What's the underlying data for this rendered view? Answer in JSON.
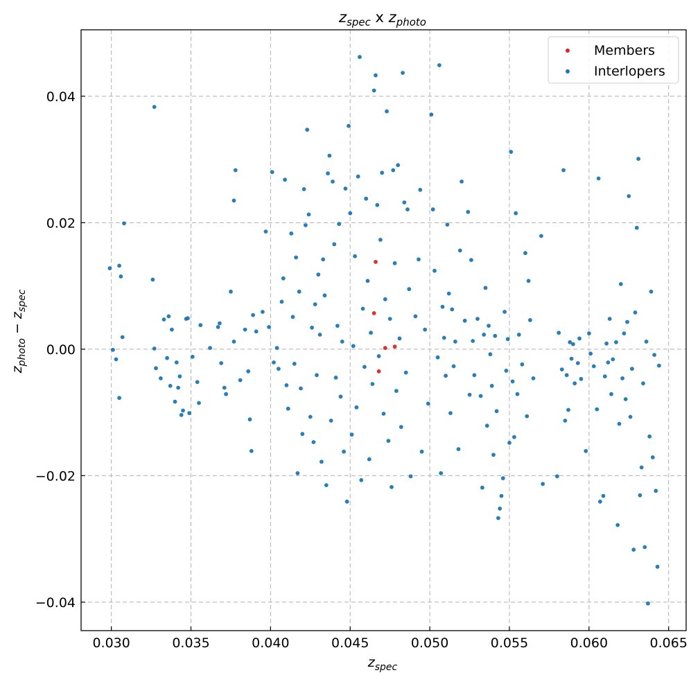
{
  "chart_data": {
    "type": "scatter",
    "title": {
      "left_main": "z",
      "left_sub": "spec",
      "joiner": " x ",
      "right_main": "z",
      "right_sub": "photo"
    },
    "xlabel": {
      "main": "z",
      "sub": "spec"
    },
    "ylabel": {
      "main1": "z",
      "sub1": "photo",
      "minus": " − ",
      "main2": "z",
      "sub2": "spec"
    },
    "xlim": [
      0.0281,
      0.0661
    ],
    "ylim": [
      -0.0445,
      0.0505
    ],
    "x_ticks": [
      0.03,
      0.035,
      0.04,
      0.045,
      0.05,
      0.055,
      0.06,
      0.065
    ],
    "x_tick_labels": [
      "0.030",
      "0.035",
      "0.040",
      "0.045",
      "0.050",
      "0.055",
      "0.060",
      "0.065"
    ],
    "y_ticks": [
      -0.04,
      -0.02,
      0.0,
      0.02,
      0.04
    ],
    "y_tick_labels": [
      "−0.04",
      "−0.02",
      "0.00",
      "0.02",
      "0.04"
    ],
    "grid": true,
    "legend_position": "top-right",
    "series": [
      {
        "name": "Members",
        "color": "#d62728",
        "points": [
          [
            0.0466,
            0.0138
          ],
          [
            0.0465,
            0.0057
          ],
          [
            0.0478,
            0.0004
          ],
          [
            0.0468,
            -0.0035
          ],
          [
            0.0472,
            0.0002
          ]
        ]
      },
      {
        "name": "Interlopers",
        "color": "#1f77b4",
        "points": [
          [
            0.0299,
            0.0128
          ],
          [
            0.0305,
            0.0132
          ],
          [
            0.0306,
            0.0115
          ],
          [
            0.0308,
            0.0199
          ],
          [
            0.0301,
            -0.0001
          ],
          [
            0.0303,
            -0.0016
          ],
          [
            0.0305,
            -0.0077
          ],
          [
            0.0307,
            0.0019
          ],
          [
            0.0327,
            0.0383
          ],
          [
            0.0326,
            0.011
          ],
          [
            0.0327,
            0.0001
          ],
          [
            0.0328,
            -0.003
          ],
          [
            0.0331,
            -0.0046
          ],
          [
            0.0333,
            0.0047
          ],
          [
            0.0335,
            -0.0014
          ],
          [
            0.0336,
            0.0052
          ],
          [
            0.0337,
            -0.0058
          ],
          [
            0.0338,
            0.0031
          ],
          [
            0.034,
            -0.0083
          ],
          [
            0.0341,
            -0.0021
          ],
          [
            0.0342,
            -0.0061
          ],
          [
            0.0343,
            -0.0043
          ],
          [
            0.0344,
            -0.0104
          ],
          [
            0.0345,
            -0.0097
          ],
          [
            0.0347,
            0.0048
          ],
          [
            0.0348,
            0.0049
          ],
          [
            0.0349,
            -0.0101
          ],
          [
            0.0351,
            -0.0012
          ],
          [
            0.0354,
            -0.0052
          ],
          [
            0.0355,
            -0.0085
          ],
          [
            0.0356,
            0.0038
          ],
          [
            0.0362,
            0.0002
          ],
          [
            0.0367,
            0.0035
          ],
          [
            0.0368,
            0.0041
          ],
          [
            0.0369,
            -0.0022
          ],
          [
            0.0371,
            -0.0061
          ],
          [
            0.0372,
            -0.0071
          ],
          [
            0.0375,
            0.0091
          ],
          [
            0.0378,
            0.0283
          ],
          [
            0.0377,
            0.0235
          ],
          [
            0.0377,
            0.0012
          ],
          [
            0.0381,
            -0.0049
          ],
          [
            0.0384,
            0.0031
          ],
          [
            0.0386,
            -0.0035
          ],
          [
            0.0387,
            -0.0111
          ],
          [
            0.0388,
            -0.0161
          ],
          [
            0.0389,
            0.0054
          ],
          [
            0.0391,
            0.0028
          ],
          [
            0.0395,
            0.0059
          ],
          [
            0.0397,
            0.0186
          ],
          [
            0.0399,
            0.0035
          ],
          [
            0.0401,
            0.028
          ],
          [
            0.0402,
            -0.0021
          ],
          [
            0.0404,
            0.0002
          ],
          [
            0.0405,
            -0.0031
          ],
          [
            0.0407,
            0.0075
          ],
          [
            0.0408,
            0.0112
          ],
          [
            0.0409,
            0.0268
          ],
          [
            0.041,
            -0.0057
          ],
          [
            0.0411,
            -0.0094
          ],
          [
            0.0413,
            0.0183
          ],
          [
            0.0414,
            0.0051
          ],
          [
            0.0415,
            -0.0023
          ],
          [
            0.0416,
            0.0145
          ],
          [
            0.0417,
            -0.0196
          ],
          [
            0.0418,
            0.0091
          ],
          [
            0.0419,
            -0.0062
          ],
          [
            0.042,
            -0.0134
          ],
          [
            0.0421,
            0.0253
          ],
          [
            0.0422,
            0.0196
          ],
          [
            0.0423,
            0.0347
          ],
          [
            0.0424,
            0.0213
          ],
          [
            0.0425,
            -0.0107
          ],
          [
            0.0426,
            0.0034
          ],
          [
            0.0427,
            -0.0147
          ],
          [
            0.0428,
            0.0071
          ],
          [
            0.0429,
            -0.0041
          ],
          [
            0.043,
            0.0118
          ],
          [
            0.0431,
            0.0023
          ],
          [
            0.0432,
            -0.0178
          ],
          [
            0.0433,
            0.0142
          ],
          [
            0.0434,
            0.0085
          ],
          [
            0.0435,
            -0.0215
          ],
          [
            0.0436,
            0.0278
          ],
          [
            0.0437,
            0.0306
          ],
          [
            0.0438,
            -0.0113
          ],
          [
            0.0439,
            0.0265
          ],
          [
            0.044,
            0.0166
          ],
          [
            0.0441,
            -0.0045
          ],
          [
            0.0442,
            0.0037
          ],
          [
            0.0443,
            0.0198
          ],
          [
            0.0444,
            -0.0075
          ],
          [
            0.0445,
            0.0012
          ],
          [
            0.0446,
            -0.0162
          ],
          [
            0.0447,
            0.0254
          ],
          [
            0.0448,
            -0.0241
          ],
          [
            0.0449,
            0.0353
          ],
          [
            0.045,
            0.0215
          ],
          [
            0.0451,
            -0.0135
          ],
          [
            0.0452,
            0.0005
          ],
          [
            0.0453,
            0.0147
          ],
          [
            0.0454,
            -0.0092
          ],
          [
            0.0455,
            0.0273
          ],
          [
            0.0456,
            0.0462
          ],
          [
            0.0457,
            -0.0207
          ],
          [
            0.0458,
            0.0064
          ],
          [
            0.0459,
            -0.0028
          ],
          [
            0.046,
            0.0238
          ],
          [
            0.0461,
            0.0108
          ],
          [
            0.0462,
            -0.0174
          ],
          [
            0.0463,
            0.0026
          ],
          [
            0.0464,
            -0.0055
          ],
          [
            0.0465,
            0.0409
          ],
          [
            0.0466,
            0.0433
          ],
          [
            0.0467,
            0.0228
          ],
          [
            0.0468,
            -0.0011
          ],
          [
            0.0469,
            0.0173
          ],
          [
            0.047,
            0.0279
          ],
          [
            0.0471,
            -0.0102
          ],
          [
            0.0472,
            0.0079
          ],
          [
            0.0473,
            0.0376
          ],
          [
            0.0474,
            -0.0145
          ],
          [
            0.0475,
            0.0048
          ],
          [
            0.0476,
            -0.0218
          ],
          [
            0.0477,
            0.0283
          ],
          [
            0.0478,
            0.0136
          ],
          [
            0.0479,
            -0.0066
          ],
          [
            0.048,
            0.0291
          ],
          [
            0.0481,
            0.0017
          ],
          [
            0.0482,
            -0.0123
          ],
          [
            0.0483,
            0.0437
          ],
          [
            0.0484,
            0.0232
          ],
          [
            0.0485,
            -0.0037
          ],
          [
            0.0486,
            0.0221
          ],
          [
            0.0487,
            0.0095
          ],
          [
            0.0488,
            -0.0201
          ],
          [
            0.0491,
            0.0052
          ],
          [
            0.0493,
            0.0142
          ],
          [
            0.0494,
            0.0252
          ],
          [
            0.0495,
            -0.0162
          ],
          [
            0.0497,
            0.0031
          ],
          [
            0.0499,
            -0.0086
          ],
          [
            0.0501,
            0.0371
          ],
          [
            0.0502,
            0.0221
          ],
          [
            0.0503,
            0.0124
          ],
          [
            0.0505,
            -0.0013
          ],
          [
            0.0506,
            0.0449
          ],
          [
            0.0507,
            -0.0196
          ],
          [
            0.0508,
            0.0067
          ],
          [
            0.0509,
            0.0018
          ],
          [
            0.051,
            -0.0042
          ],
          [
            0.0511,
            0.0197
          ],
          [
            0.0512,
            0.0088
          ],
          [
            0.0513,
            -0.0101
          ],
          [
            0.0514,
            0.0063
          ],
          [
            0.0515,
            -0.0027
          ],
          [
            0.0516,
            0.0012
          ],
          [
            0.0518,
            -0.0158
          ],
          [
            0.0519,
            0.0156
          ],
          [
            0.052,
            0.0265
          ],
          [
            0.0522,
            0.0045
          ],
          [
            0.0524,
            0.0217
          ],
          [
            0.0525,
            -0.0072
          ],
          [
            0.0526,
            0.0141
          ],
          [
            0.0527,
            0.0013
          ],
          [
            0.0528,
            -0.0041
          ],
          [
            0.053,
            0.0048
          ],
          [
            0.0532,
            -0.0074
          ],
          [
            0.0533,
            -0.0219
          ],
          [
            0.0534,
            0.0023
          ],
          [
            0.0535,
            0.0097
          ],
          [
            0.0536,
            -0.0121
          ],
          [
            0.0537,
            0.0037
          ],
          [
            0.0538,
            -0.0008
          ],
          [
            0.0539,
            -0.0058
          ],
          [
            0.054,
            -0.0167
          ],
          [
            0.0541,
            0.0021
          ],
          [
            0.0542,
            -0.0098
          ],
          [
            0.0543,
            -0.0267
          ],
          [
            0.0544,
            -0.0252
          ],
          [
            0.0545,
            -0.0232
          ],
          [
            0.0546,
            -0.0204
          ],
          [
            0.0547,
            0.0059
          ],
          [
            0.0548,
            -0.0034
          ],
          [
            0.0549,
            0.0016
          ],
          [
            0.055,
            -0.0148
          ],
          [
            0.0551,
            0.0312
          ],
          [
            0.0552,
            -0.0051
          ],
          [
            0.0553,
            -0.0139
          ],
          [
            0.0554,
            0.0215
          ],
          [
            0.0555,
            -0.0071
          ],
          [
            0.0556,
            0.0023
          ],
          [
            0.0558,
            -0.0024
          ],
          [
            0.056,
            0.0152
          ],
          [
            0.0561,
            -0.0106
          ],
          [
            0.0562,
            0.0108
          ],
          [
            0.0563,
            0.0046
          ],
          [
            0.0565,
            -0.0046
          ],
          [
            0.057,
            0.0179
          ],
          [
            0.0571,
            -0.0213
          ],
          [
            0.058,
            -0.0201
          ],
          [
            0.0581,
            0.0026
          ],
          [
            0.0583,
            -0.0032
          ],
          [
            0.0584,
            0.0283
          ],
          [
            0.0585,
            -0.0113
          ],
          [
            0.0586,
            -0.0041
          ],
          [
            0.0587,
            -0.0096
          ],
          [
            0.0588,
            0.0011
          ],
          [
            0.0589,
            -0.0015
          ],
          [
            0.059,
            0.0008
          ],
          [
            0.0591,
            -0.0054
          ],
          [
            0.0593,
            -0.0022
          ],
          [
            0.0594,
            0.0017
          ],
          [
            0.0595,
            -0.0047
          ],
          [
            0.0598,
            -0.0161
          ],
          [
            0.06,
            0.0025
          ],
          [
            0.0601,
            -0.0007
          ],
          [
            0.0603,
            -0.0027
          ],
          [
            0.0605,
            -0.0095
          ],
          [
            0.0606,
            0.027
          ],
          [
            0.0607,
            -0.0241
          ],
          [
            0.0609,
            -0.0232
          ],
          [
            0.061,
            -0.0043
          ],
          [
            0.0611,
            0.0009
          ],
          [
            0.0612,
            -0.0021
          ],
          [
            0.0613,
            0.0048
          ],
          [
            0.0614,
            -0.0071
          ],
          [
            0.0615,
            -0.0016
          ],
          [
            0.0617,
            0.0011
          ],
          [
            0.0618,
            -0.0278
          ],
          [
            0.0619,
            -0.0118
          ],
          [
            0.062,
            0.0103
          ],
          [
            0.0621,
            -0.0046
          ],
          [
            0.0622,
            0.0025
          ],
          [
            0.0623,
            -0.0079
          ],
          [
            0.0624,
            0.0043
          ],
          [
            0.0625,
            0.0242
          ],
          [
            0.0626,
            -0.0107
          ],
          [
            0.0627,
            -0.0031
          ],
          [
            0.0628,
            -0.0317
          ],
          [
            0.0629,
            0.0058
          ],
          [
            0.063,
            0.0192
          ],
          [
            0.0631,
            0.0301
          ],
          [
            0.0632,
            -0.0231
          ],
          [
            0.0633,
            -0.0187
          ],
          [
            0.0634,
            -0.0054
          ],
          [
            0.0635,
            -0.0313
          ],
          [
            0.0636,
            0.0012
          ],
          [
            0.0637,
            -0.0402
          ],
          [
            0.0638,
            -0.0138
          ],
          [
            0.0639,
            0.0091
          ],
          [
            0.064,
            -0.0171
          ],
          [
            0.0641,
            -0.0009
          ],
          [
            0.0642,
            -0.0224
          ],
          [
            0.0643,
            -0.0344
          ],
          [
            0.0644,
            -0.0026
          ]
        ]
      }
    ]
  }
}
